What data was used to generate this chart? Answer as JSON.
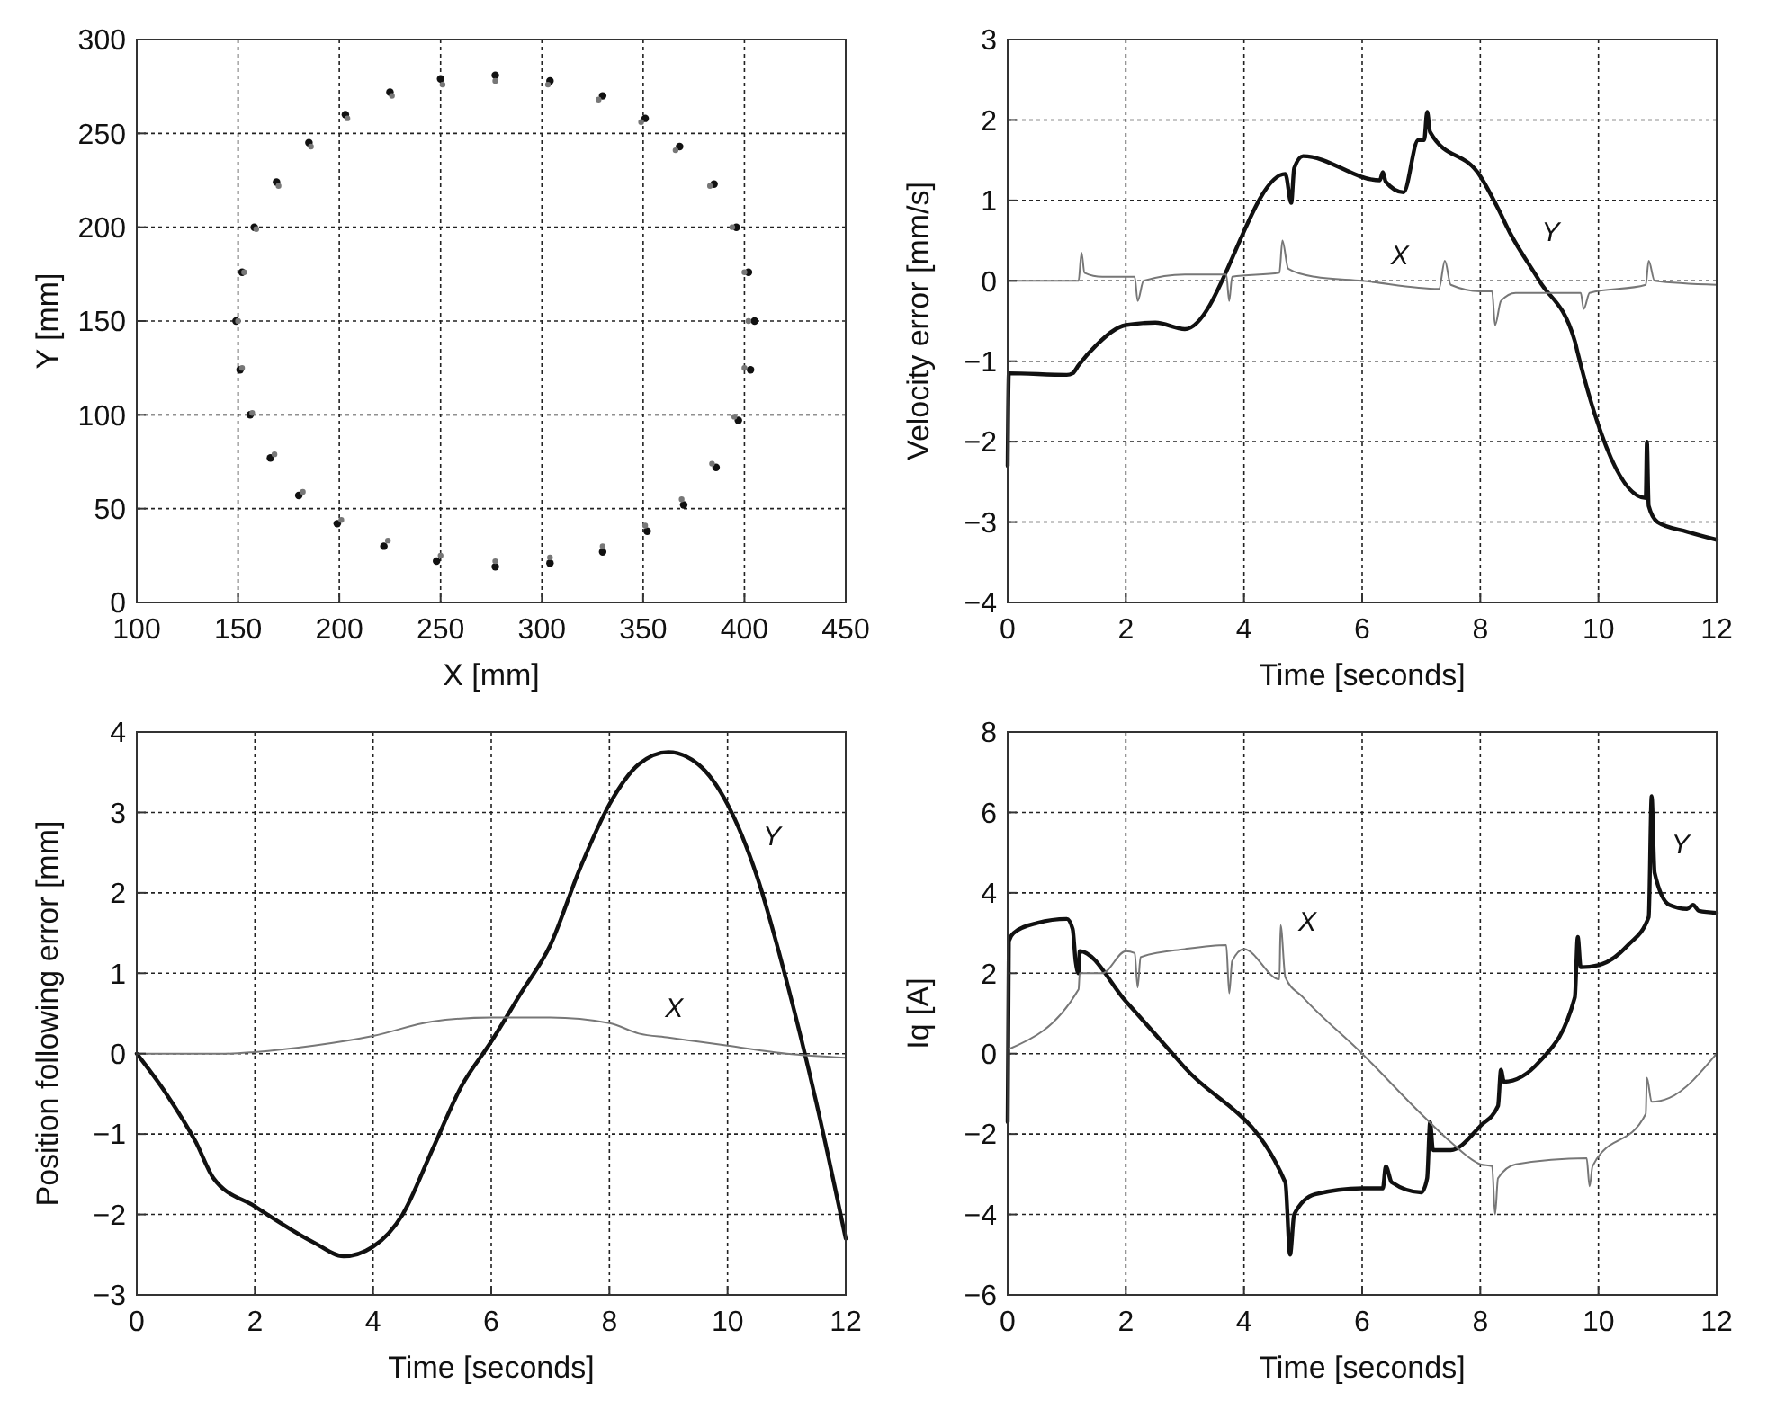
{
  "chart_data": [
    {
      "type": "scatter",
      "xlabel": "X [mm]",
      "ylabel": "Y [mm]",
      "xlim": [
        100,
        450
      ],
      "xticks": [
        100,
        150,
        200,
        250,
        300,
        350,
        400,
        450
      ],
      "ylim": [
        0,
        300
      ],
      "yticks": [
        0,
        50,
        100,
        150,
        200,
        250,
        300
      ],
      "grid": true,
      "marker": "circle",
      "series": [
        {
          "color": "#111111",
          "x": [
            149,
            152,
            158,
            169,
            185,
            203,
            225,
            250,
            277,
            304,
            330,
            351,
            368,
            385,
            396,
            402,
            405,
            403,
            397,
            386,
            370,
            352,
            330,
            304,
            277,
            248,
            222,
            199,
            180,
            166,
            156,
            151
          ],
          "values": [
            150,
            176,
            200,
            224,
            245,
            260,
            272,
            279,
            281,
            278,
            270,
            258,
            243,
            223,
            200,
            176,
            150,
            124,
            97,
            72,
            52,
            38,
            27,
            21,
            19,
            22,
            30,
            42,
            57,
            77,
            100,
            124
          ]
        },
        {
          "color": "#777777",
          "x": [
            150,
            153,
            159,
            170,
            186,
            204,
            226,
            251,
            277,
            303,
            328,
            349,
            366,
            383,
            394,
            400,
            402,
            400,
            395,
            384,
            369,
            351,
            330,
            304,
            277,
            250,
            224,
            201,
            182,
            168,
            157,
            152
          ],
          "values": [
            150,
            176,
            199,
            222,
            243,
            258,
            270,
            276,
            278,
            276,
            268,
            256,
            241,
            222,
            200,
            176,
            150,
            125,
            99,
            74,
            55,
            41,
            30,
            24,
            22,
            25,
            33,
            44,
            59,
            79,
            101,
            125
          ]
        }
      ]
    },
    {
      "type": "line",
      "xlabel": "Time [seconds]",
      "ylabel": "Velocity error [mm/s]",
      "xlim": [
        0,
        12
      ],
      "xticks": [
        0,
        2,
        4,
        6,
        8,
        10,
        12
      ],
      "ylim": [
        -4,
        3
      ],
      "yticks": [
        -4,
        -3,
        -2,
        -1,
        0,
        1,
        2,
        3
      ],
      "grid": true,
      "line_style": "solid",
      "marker": "none",
      "series": [
        {
          "name": "Y",
          "color": "#111111",
          "x": [
            0,
            0.02,
            1.0,
            1.1,
            1.2,
            1.5,
            2,
            2.5,
            3,
            4.7,
            4.8,
            4.85,
            5,
            6.3,
            6.35,
            6.4,
            6.7,
            6.95,
            7.05,
            7.1,
            7.15,
            8,
            8.3,
            8.5,
            9,
            9.6,
            9.65,
            10.8,
            10.82,
            10.85,
            11,
            11.5,
            12
          ],
          "values": [
            -2.3,
            -1.15,
            -1.17,
            -1.15,
            -1.05,
            -0.8,
            -0.55,
            -0.52,
            -0.6,
            1.33,
            0.97,
            1.4,
            1.55,
            1.25,
            1.35,
            1.23,
            1.1,
            1.75,
            1.75,
            2.1,
            1.85,
            1.3,
            0.9,
            0.6,
            0,
            -0.75,
            -0.9,
            -2.7,
            -2.0,
            -2.8,
            -3,
            -3.12,
            -3.22
          ]
        },
        {
          "name": "X",
          "color": "#777777",
          "x": [
            0,
            1.2,
            1.25,
            1.3,
            1.6,
            2.15,
            2.2,
            2.3,
            3,
            3.7,
            3.75,
            3.8,
            4.6,
            4.65,
            4.75,
            5.2,
            6,
            7.3,
            7.4,
            7.5,
            8,
            8.2,
            8.25,
            8.35,
            8.6,
            9.7,
            9.75,
            9.85,
            10.8,
            10.85,
            10.95,
            12
          ],
          "values": [
            0,
            0,
            0.35,
            0.1,
            0.05,
            0.05,
            -0.25,
            0,
            0.08,
            0.08,
            -0.25,
            0.05,
            0.1,
            0.5,
            0.15,
            0.05,
            0,
            -0.1,
            0.25,
            -0.05,
            -0.13,
            -0.13,
            -0.55,
            -0.25,
            -0.15,
            -0.15,
            -0.35,
            -0.15,
            -0.05,
            0.25,
            0,
            -0.05
          ]
        }
      ]
    },
    {
      "type": "line",
      "xlabel": "Time [seconds]",
      "ylabel": "Position following error [mm]",
      "xlim": [
        0,
        12
      ],
      "xticks": [
        0,
        2,
        4,
        6,
        8,
        10,
        12
      ],
      "ylim": [
        -3,
        4
      ],
      "yticks": [
        -3,
        -2,
        -1,
        0,
        1,
        2,
        3,
        4
      ],
      "grid": true,
      "line_style": "solid",
      "marker": "none",
      "series": [
        {
          "name": "Y",
          "color": "#111111",
          "x": [
            0,
            0.5,
            1,
            1.3,
            2,
            3,
            3.5,
            4,
            4.5,
            5,
            5.5,
            6,
            6.5,
            7,
            7.5,
            8,
            8.5,
            9,
            9.5,
            10,
            10.5,
            11,
            11.5,
            12
          ],
          "values": [
            0,
            -0.5,
            -1.1,
            -1.55,
            -1.9,
            -2.35,
            -2.52,
            -2.4,
            -2.0,
            -1.2,
            -0.4,
            0.15,
            0.75,
            1.35,
            2.3,
            3.1,
            3.6,
            3.75,
            3.6,
            3.1,
            2.2,
            0.9,
            -0.6,
            -2.3
          ]
        },
        {
          "name": "X",
          "color": "#777777",
          "x": [
            0,
            1.5,
            2,
            3,
            4,
            5,
            6,
            7,
            8,
            8.5,
            9,
            10,
            11,
            12
          ],
          "values": [
            0,
            0,
            0.02,
            0.1,
            0.22,
            0.4,
            0.45,
            0.45,
            0.38,
            0.25,
            0.2,
            0.1,
            0,
            -0.05
          ]
        }
      ]
    },
    {
      "type": "line",
      "xlabel": "Time [seconds]",
      "ylabel": "Iq [A]",
      "xlim": [
        0,
        12
      ],
      "xticks": [
        0,
        2,
        4,
        6,
        8,
        10,
        12
      ],
      "ylim": [
        -6,
        8
      ],
      "yticks": [
        -6,
        -4,
        -2,
        0,
        2,
        4,
        6,
        8
      ],
      "grid": true,
      "line_style": "solid",
      "marker": "none",
      "series": [
        {
          "name": "Y",
          "color": "#111111",
          "x": [
            0,
            0.02,
            0.1,
            0.5,
            1,
            1.1,
            1.15,
            1.2,
            1.22,
            2,
            3,
            4.7,
            4.78,
            4.85,
            5.2,
            6,
            6.35,
            6.4,
            6.5,
            7,
            7.1,
            7.15,
            7.2,
            7.5,
            8,
            8.3,
            8.35,
            8.4,
            9,
            9.6,
            9.65,
            9.7,
            10,
            10.5,
            10.85,
            10.9,
            10.95,
            11.2,
            11.5,
            11.6,
            11.7,
            12
          ],
          "values": [
            -1.7,
            2.8,
            3.0,
            3.25,
            3.35,
            3.1,
            2.3,
            2.0,
            2.55,
            1.3,
            -0.35,
            -3.2,
            -5.0,
            -4.0,
            -3.5,
            -3.35,
            -3.35,
            -2.8,
            -3.2,
            -3.45,
            -3.1,
            -1.7,
            -2.4,
            -2.4,
            -1.8,
            -1.3,
            -0.4,
            -0.7,
            -0.2,
            1.4,
            2.9,
            2.15,
            2.2,
            2.7,
            3.4,
            6.4,
            4.5,
            3.7,
            3.6,
            3.7,
            3.55,
            3.5
          ]
        },
        {
          "name": "X",
          "color": "#777777",
          "x": [
            0,
            1.2,
            1.22,
            1.6,
            2,
            2.15,
            2.2,
            2.25,
            3,
            3.7,
            3.75,
            3.8,
            4,
            4.6,
            4.62,
            4.7,
            5,
            6,
            7,
            7.5,
            8,
            8.2,
            8.25,
            8.3,
            8.6,
            9.8,
            9.85,
            9.9,
            10.8,
            10.82,
            10.9,
            11.2,
            12
          ],
          "values": [
            0.1,
            1.6,
            2.0,
            2.0,
            2.55,
            2.5,
            1.65,
            2.4,
            2.6,
            2.7,
            1.5,
            2.3,
            2.6,
            1.85,
            3.2,
            1.9,
            1.4,
            0,
            -1.5,
            -2.2,
            -2.75,
            -2.8,
            -4.0,
            -3.1,
            -2.75,
            -2.6,
            -3.3,
            -2.8,
            -1.5,
            -0.6,
            -1.2,
            -1.1,
            0
          ]
        }
      ]
    }
  ]
}
